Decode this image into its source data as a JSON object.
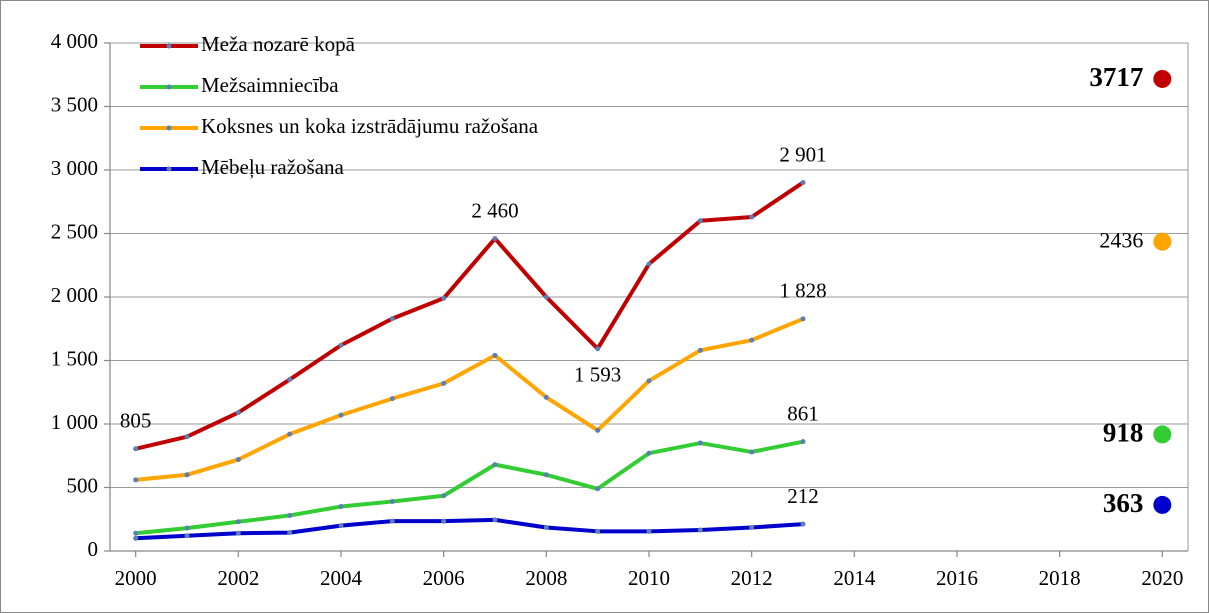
{
  "chart_data": {
    "type": "line",
    "x": [
      2000,
      2001,
      2002,
      2003,
      2004,
      2005,
      2006,
      2007,
      2008,
      2009,
      2010,
      2011,
      2012,
      2013
    ],
    "series": [
      {
        "name": "Meža nozarē kopā",
        "color": "#c00000",
        "values": [
          805,
          900,
          1090,
          1350,
          1620,
          1830,
          1990,
          2460,
          2000,
          1593,
          2260,
          2600,
          2630,
          2901
        ],
        "value_labels": [
          "805",
          null,
          null,
          null,
          null,
          null,
          null,
          "2 460",
          null,
          "1 593",
          null,
          null,
          null,
          "2 901"
        ],
        "target": {
          "x": 2020,
          "value": 3717,
          "bold": true
        }
      },
      {
        "name": "Mežsaimniecība",
        "color": "#33cc33",
        "values": [
          140,
          180,
          230,
          280,
          350,
          390,
          435,
          680,
          600,
          490,
          770,
          850,
          780,
          861
        ],
        "value_labels": [
          null,
          null,
          null,
          null,
          null,
          null,
          null,
          null,
          null,
          null,
          null,
          null,
          null,
          "861"
        ],
        "target": {
          "x": 2020,
          "value": 918,
          "bold": true
        }
      },
      {
        "name": "Koksnes un koka izstrādājumu ražošana",
        "color": "#ffa500",
        "values": [
          560,
          600,
          720,
          920,
          1070,
          1200,
          1320,
          1540,
          1210,
          950,
          1340,
          1580,
          1660,
          1828
        ],
        "value_labels": [
          null,
          null,
          null,
          null,
          null,
          null,
          null,
          null,
          null,
          null,
          null,
          null,
          null,
          "1 828"
        ],
        "target": {
          "x": 2020,
          "value": 2436,
          "bold": false
        }
      },
      {
        "name": "Mēbeļu ražošana",
        "color": "#0000cc",
        "values": [
          100,
          120,
          140,
          145,
          200,
          235,
          235,
          245,
          185,
          155,
          155,
          165,
          185,
          212
        ],
        "value_labels": [
          null,
          null,
          null,
          null,
          null,
          null,
          null,
          null,
          null,
          null,
          null,
          null,
          null,
          "212"
        ],
        "target": {
          "x": 2020,
          "value": 363,
          "bold": true
        }
      }
    ],
    "xlim": [
      1999.5,
      2020.5
    ],
    "xticks": [
      2000,
      2002,
      2004,
      2006,
      2008,
      2010,
      2012,
      2014,
      2016,
      2018,
      2020
    ],
    "ylim": [
      0,
      4000
    ],
    "yticks": [
      0,
      500,
      {
        "value": 1000,
        "label": "1 000"
      },
      {
        "value": 1500,
        "label": "1 500"
      },
      {
        "value": 2000,
        "label": "2 000"
      },
      {
        "value": 2500,
        "label": "2 500"
      },
      {
        "value": 3000,
        "label": "3 000"
      },
      {
        "value": 3500,
        "label": "3 500"
      },
      {
        "value": 4000,
        "label": "4 000"
      }
    ],
    "grid": true,
    "legend": "upper left",
    "marker_color": "#5b7fb5"
  }
}
